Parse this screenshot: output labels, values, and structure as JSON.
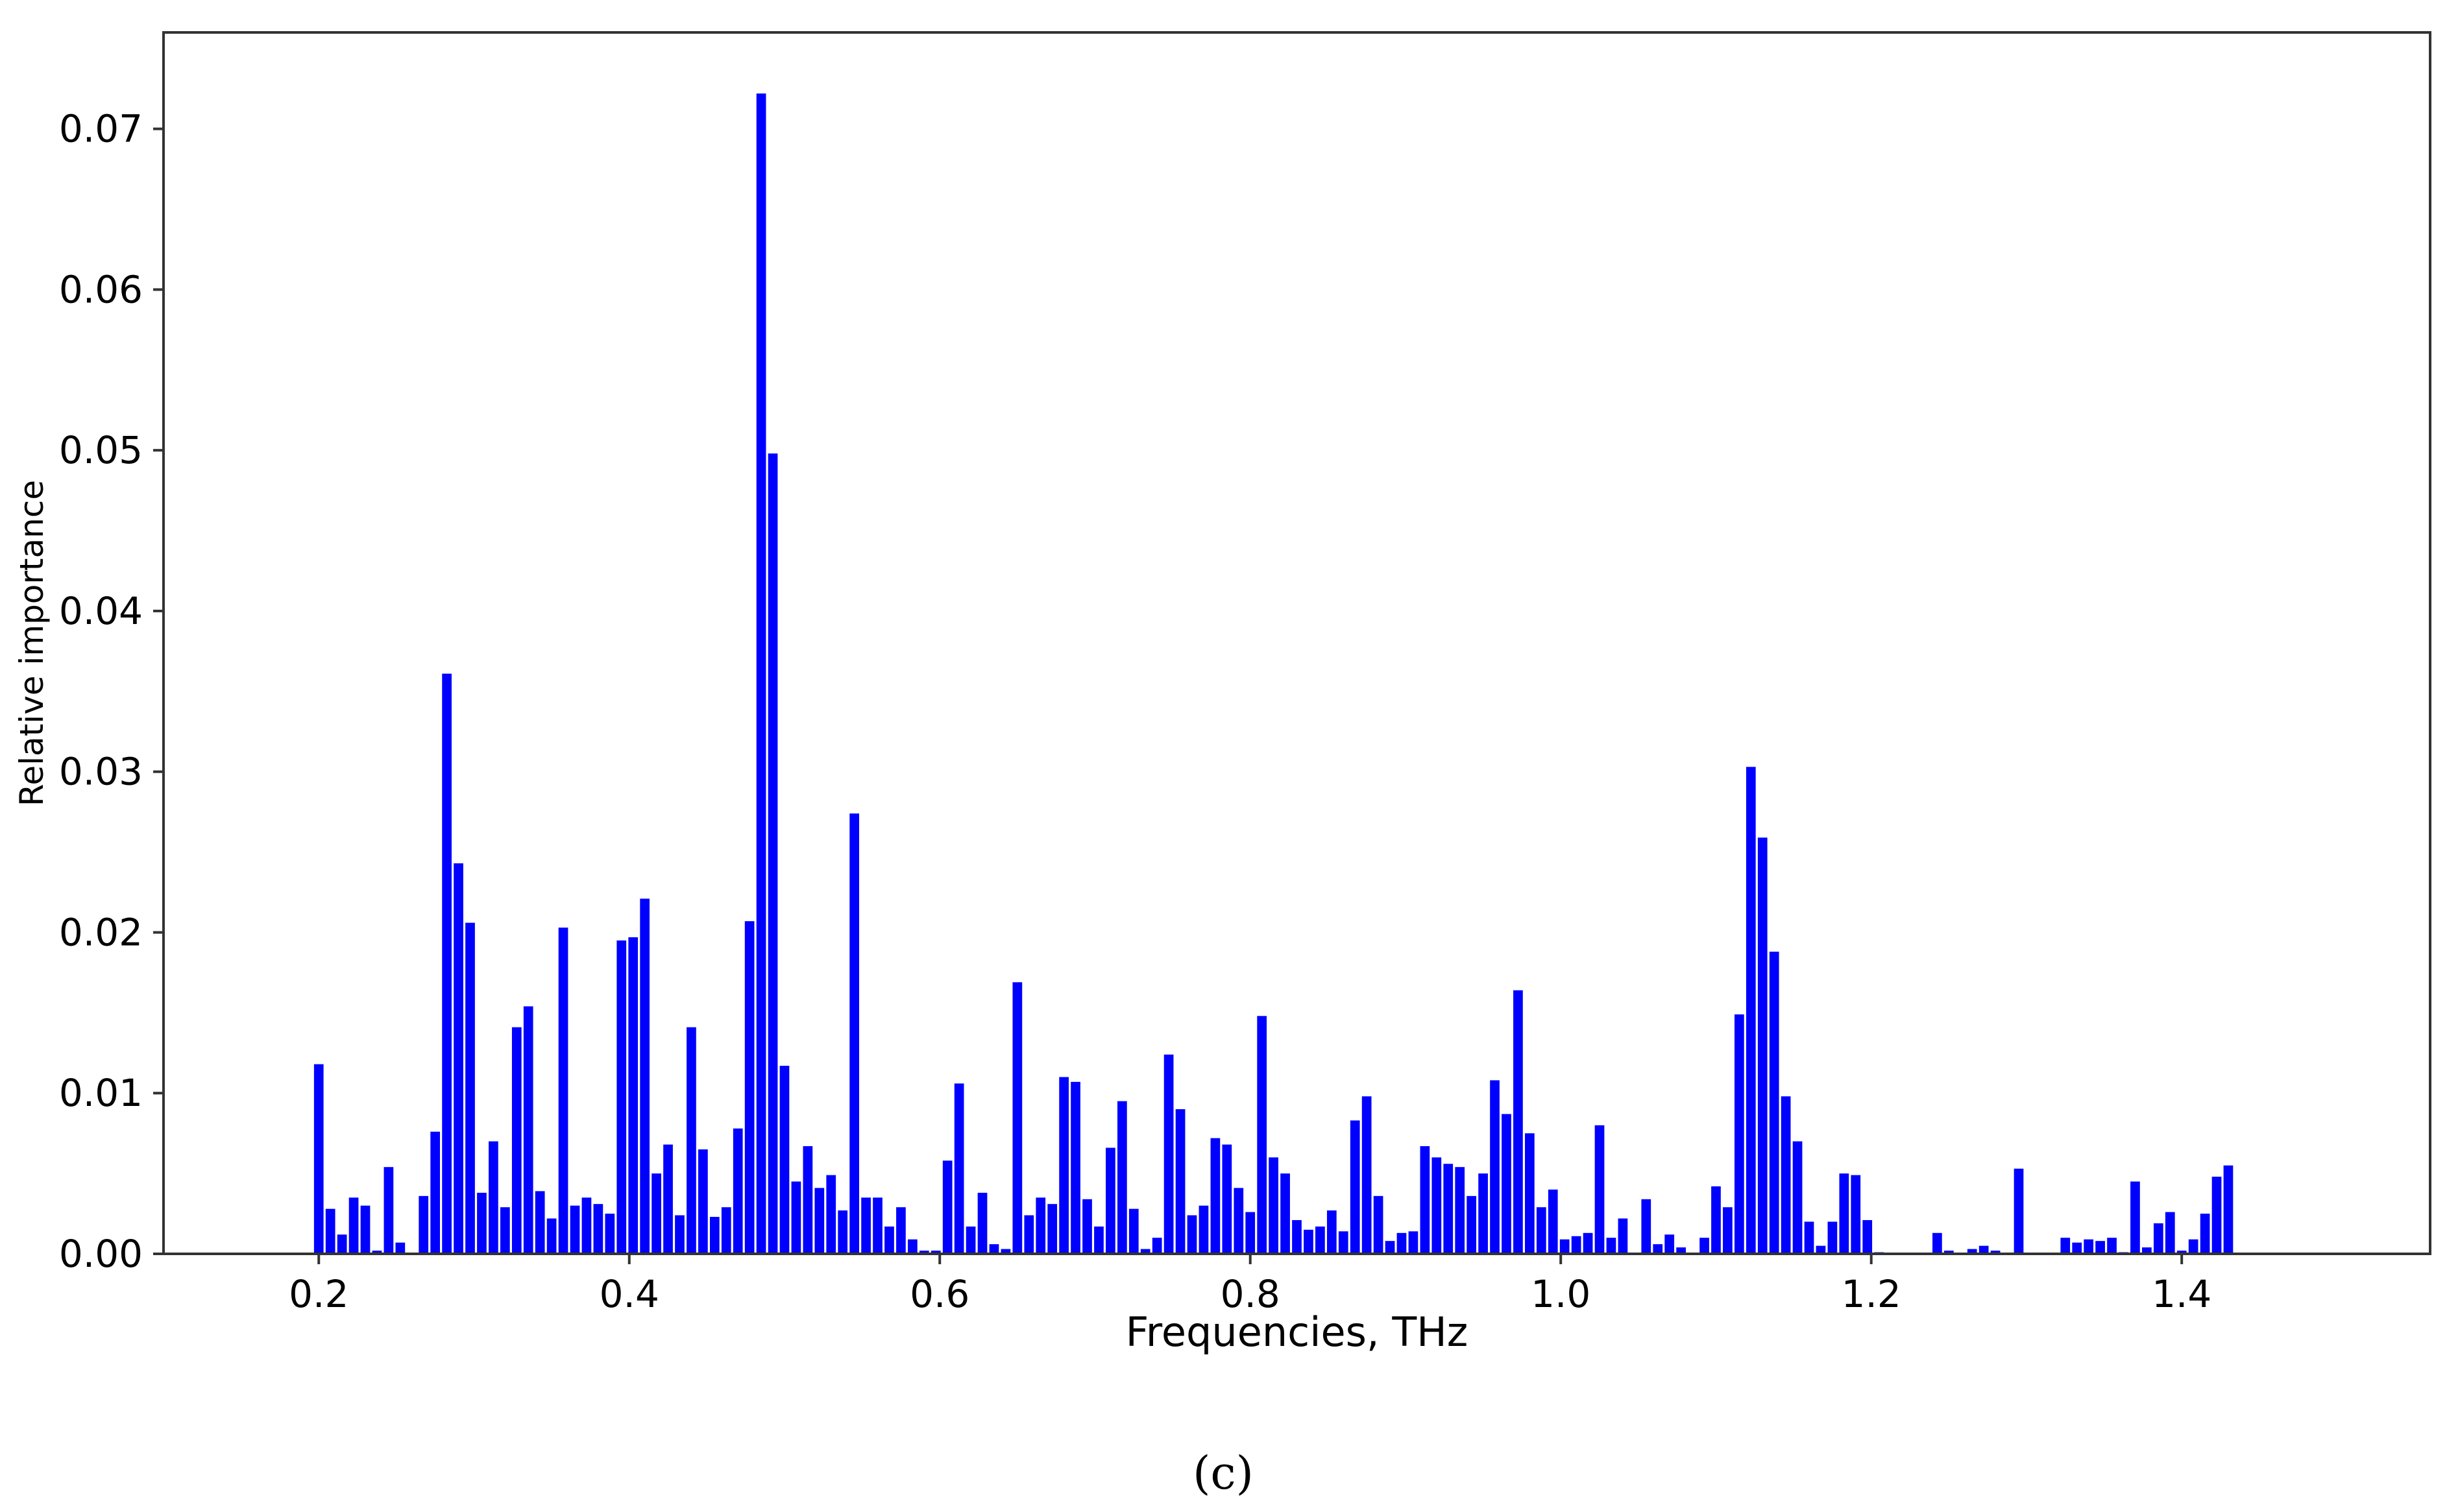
{
  "caption": "(c)",
  "chart_data": {
    "type": "bar",
    "xlabel": "Frequencies, THz",
    "ylabel": "Relative importance",
    "xlim": [
      0.1,
      1.56
    ],
    "ylim": [
      0,
      0.076
    ],
    "xticks": [
      0.2,
      0.4,
      0.6,
      0.8,
      1.0,
      1.2,
      1.4
    ],
    "xtick_labels": [
      "0.2",
      "0.4",
      "0.6",
      "0.8",
      "1.0",
      "1.2",
      "1.4"
    ],
    "yticks": [
      0,
      0.01,
      0.02,
      0.03,
      0.04,
      0.05,
      0.06,
      0.07
    ],
    "ytick_labels": [
      "0.00",
      "0.01",
      "0.02",
      "0.03",
      "0.04",
      "0.05",
      "0.06",
      "0.07"
    ],
    "bar_color": "#0000ff",
    "grid": false,
    "legend": "none",
    "x_start": 0.2,
    "x_step": 0.0075,
    "values": [
      0.0118,
      0.0028,
      0.0012,
      0.0035,
      0.003,
      0.0002,
      0.0054,
      0.0007,
      0.0,
      0.0036,
      0.0076,
      0.0361,
      0.0243,
      0.0206,
      0.0038,
      0.007,
      0.0029,
      0.0141,
      0.0154,
      0.0039,
      0.0022,
      0.0203,
      0.003,
      0.0035,
      0.0031,
      0.0025,
      0.0195,
      0.0197,
      0.0221,
      0.005,
      0.0068,
      0.0024,
      0.0141,
      0.0065,
      0.0023,
      0.0029,
      0.0078,
      0.0207,
      0.0722,
      0.0498,
      0.0117,
      0.0045,
      0.0067,
      0.0041,
      0.0049,
      0.0027,
      0.0274,
      0.0035,
      0.0035,
      0.0017,
      0.0029,
      0.0009,
      0.0002,
      0.0002,
      0.0058,
      0.0106,
      0.0017,
      0.0038,
      0.0006,
      0.0003,
      0.0169,
      0.0024,
      0.0035,
      0.0031,
      0.011,
      0.0107,
      0.0034,
      0.0017,
      0.0066,
      0.0095,
      0.0028,
      0.0003,
      0.001,
      0.0124,
      0.009,
      0.0024,
      0.003,
      0.0072,
      0.0068,
      0.0041,
      0.0026,
      0.0148,
      0.006,
      0.005,
      0.0021,
      0.0015,
      0.0017,
      0.0027,
      0.0014,
      0.0083,
      0.0098,
      0.0036,
      0.0008,
      0.0013,
      0.0014,
      0.0067,
      0.006,
      0.0056,
      0.0054,
      0.0036,
      0.005,
      0.0108,
      0.0087,
      0.0164,
      0.0075,
      0.0029,
      0.004,
      0.0009,
      0.0011,
      0.0013,
      0.008,
      0.001,
      0.0022,
      0.0,
      0.0034,
      0.0006,
      0.0012,
      0.0004,
      0.0,
      0.001,
      0.0042,
      0.0029,
      0.0149,
      0.0303,
      0.0259,
      0.0188,
      0.0098,
      0.007,
      0.002,
      0.0005,
      0.002,
      0.005,
      0.0049,
      0.0021,
      0.0001,
      0.0,
      0.0,
      0.0,
      0.0,
      0.0013,
      0.0002,
      0.0,
      0.0003,
      0.0005,
      0.0002,
      0.0,
      0.0053,
      0.0,
      0.0,
      0.0,
      0.001,
      0.0007,
      0.0009,
      0.0008,
      0.001,
      0.0001,
      0.0045,
      0.0004,
      0.0019,
      0.0026,
      0.0002,
      0.0009,
      0.0025,
      0.0048,
      0.0055
    ]
  }
}
